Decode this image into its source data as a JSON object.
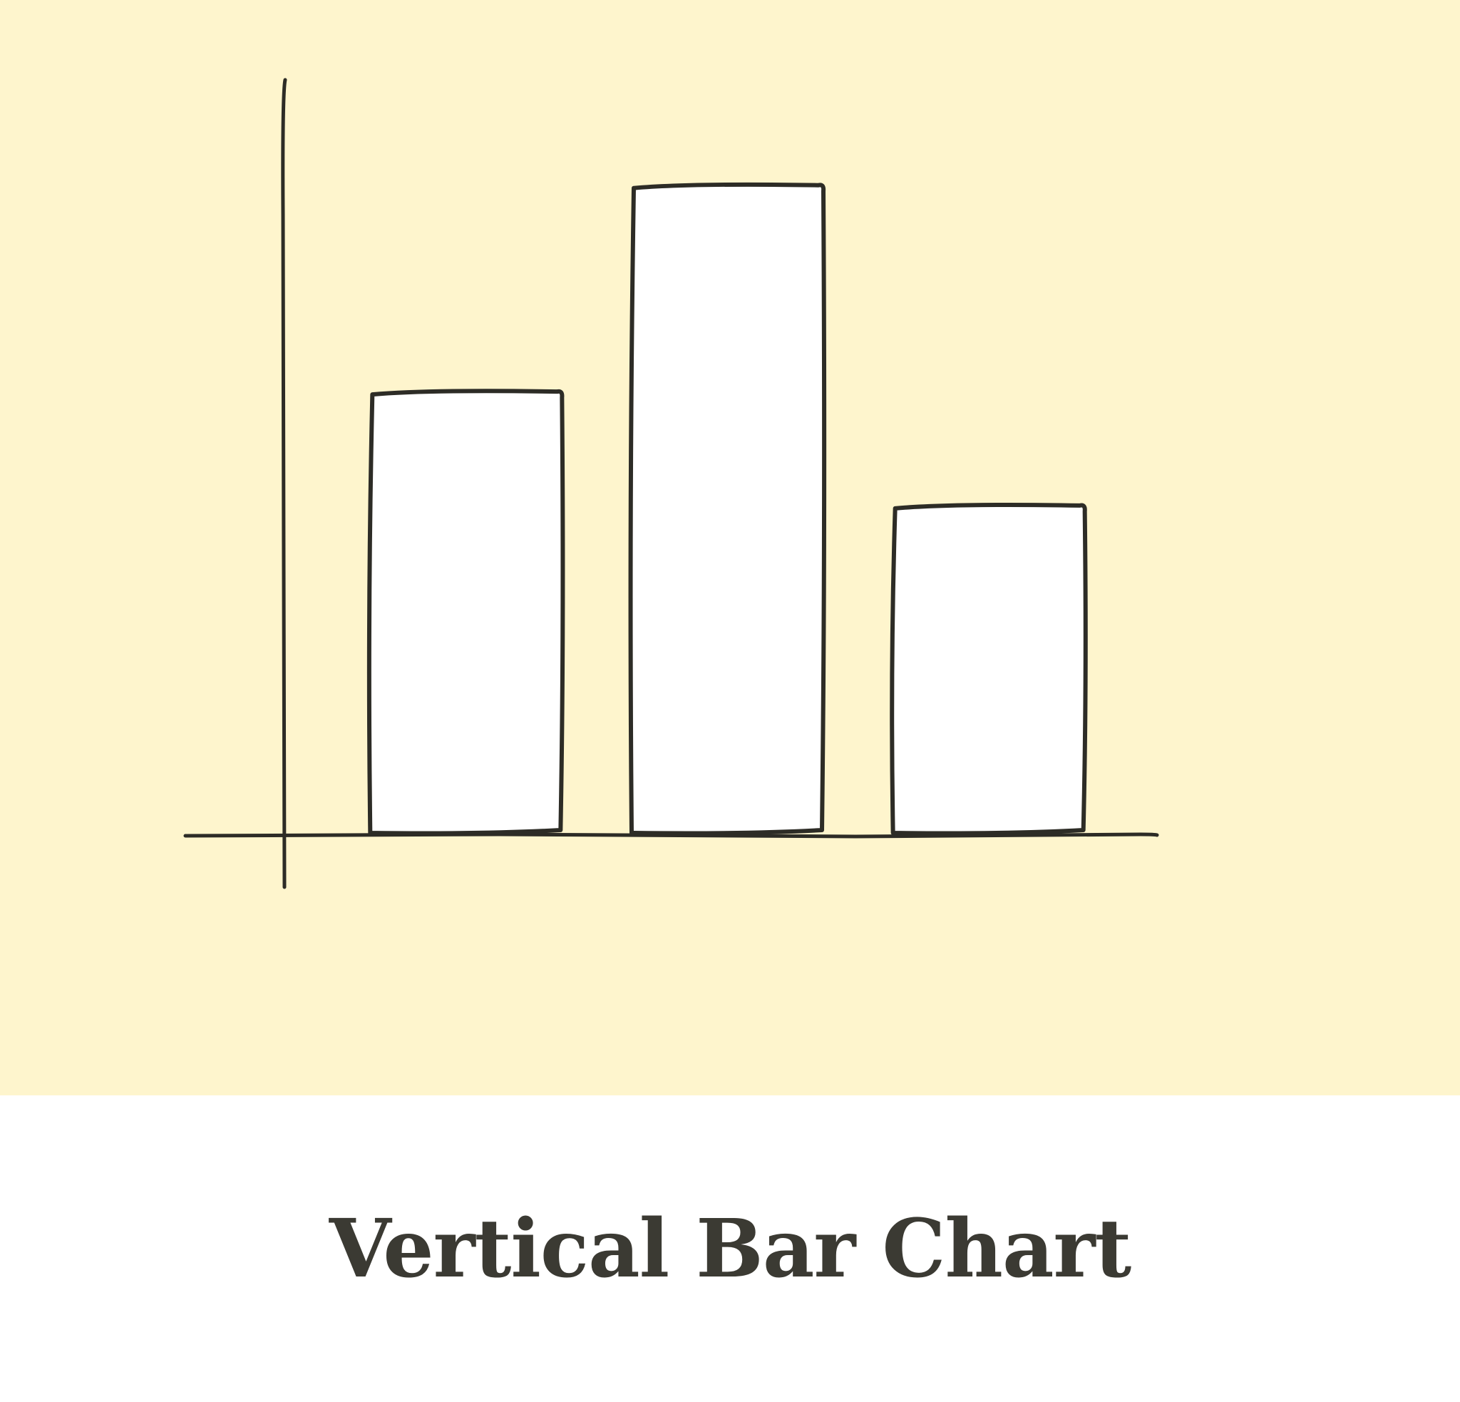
{
  "colors": {
    "background": "#fef5cd",
    "bar_fill": "#ffffff",
    "ink": "#2d2c26",
    "caption_text": "#3b3a33",
    "caption_background": "#ffffff"
  },
  "caption": {
    "title": "Vertical Bar Chart"
  },
  "chart_data": {
    "type": "bar",
    "title": "",
    "xlabel": "",
    "ylabel": "",
    "categories": [
      "",
      "",
      ""
    ],
    "values": [
      62,
      91,
      46
    ],
    "ylim": [
      0,
      106
    ],
    "grid": false,
    "style": "hand-drawn"
  }
}
